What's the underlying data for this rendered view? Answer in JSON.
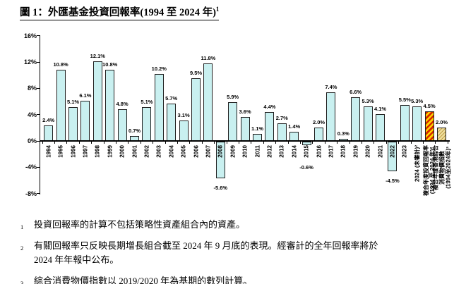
{
  "title": {
    "text": "圖 1：外匯基金投資回報率(1994 至 2024 年)",
    "sup": "1"
  },
  "chart_data": {
    "type": "bar",
    "title": "圖 1：外匯基金投資回報率(1994 至 2024 年)¹",
    "xlabel": "",
    "ylabel": "",
    "ylim": [
      -8,
      16
    ],
    "yticks": [
      16,
      12,
      8,
      4,
      0,
      -4,
      -8
    ],
    "ytick_suffix": "%",
    "grid": false,
    "legend": "none",
    "bar_color": "#c9f0f0",
    "hatch_styles": {
      "31": "hatch-red",
      "32": "hatch-tan"
    },
    "hatch_colors": {
      "red": [
        "#d42600",
        "#ffd400"
      ],
      "tan": [
        "#bf9d45",
        "#efdf9e"
      ]
    },
    "categories": [
      "1994",
      "1995",
      "1996",
      "1997",
      "1998",
      "1999",
      "2000",
      "2001",
      "2002",
      "2003",
      "2004",
      "2005",
      "2006",
      "2007",
      "2008",
      "2009",
      "2010",
      "2011",
      "2012",
      "2013",
      "2014",
      "2015",
      "2016",
      "2017",
      "2018",
      "2019",
      "2020",
      "2021",
      "2022",
      "2023",
      "2024 (未審計)²",
      "複合年度投資回報率\n(1994 至 2024 年)²",
      "複合年度香港綜合\n消費物價指數\n(1994至2024年)³"
    ],
    "values": [
      2.4,
      10.8,
      5.1,
      6.1,
      12.1,
      10.8,
      4.8,
      0.7,
      5.1,
      10.2,
      5.7,
      3.1,
      9.5,
      11.8,
      -5.6,
      5.9,
      3.6,
      1.1,
      4.4,
      2.7,
      1.4,
      -0.6,
      2.0,
      7.4,
      0.3,
      6.6,
      5.3,
      4.1,
      -4.5,
      5.5,
      5.3,
      4.5,
      2.0
    ]
  },
  "footnotes": [
    {
      "marker": "1",
      "text": "投資回報率的計算不包括策略性資產組合內的資產。"
    },
    {
      "marker": "2",
      "text": "有關回報率只反映長期增長組合截至 2024 年 9 月底的表現。經審計的全年回報率將於 2024 年年報中公布。"
    },
    {
      "marker": "3",
      "text": "綜合消費物價指數以 2019/2020 年為基期的數列計算。"
    }
  ]
}
